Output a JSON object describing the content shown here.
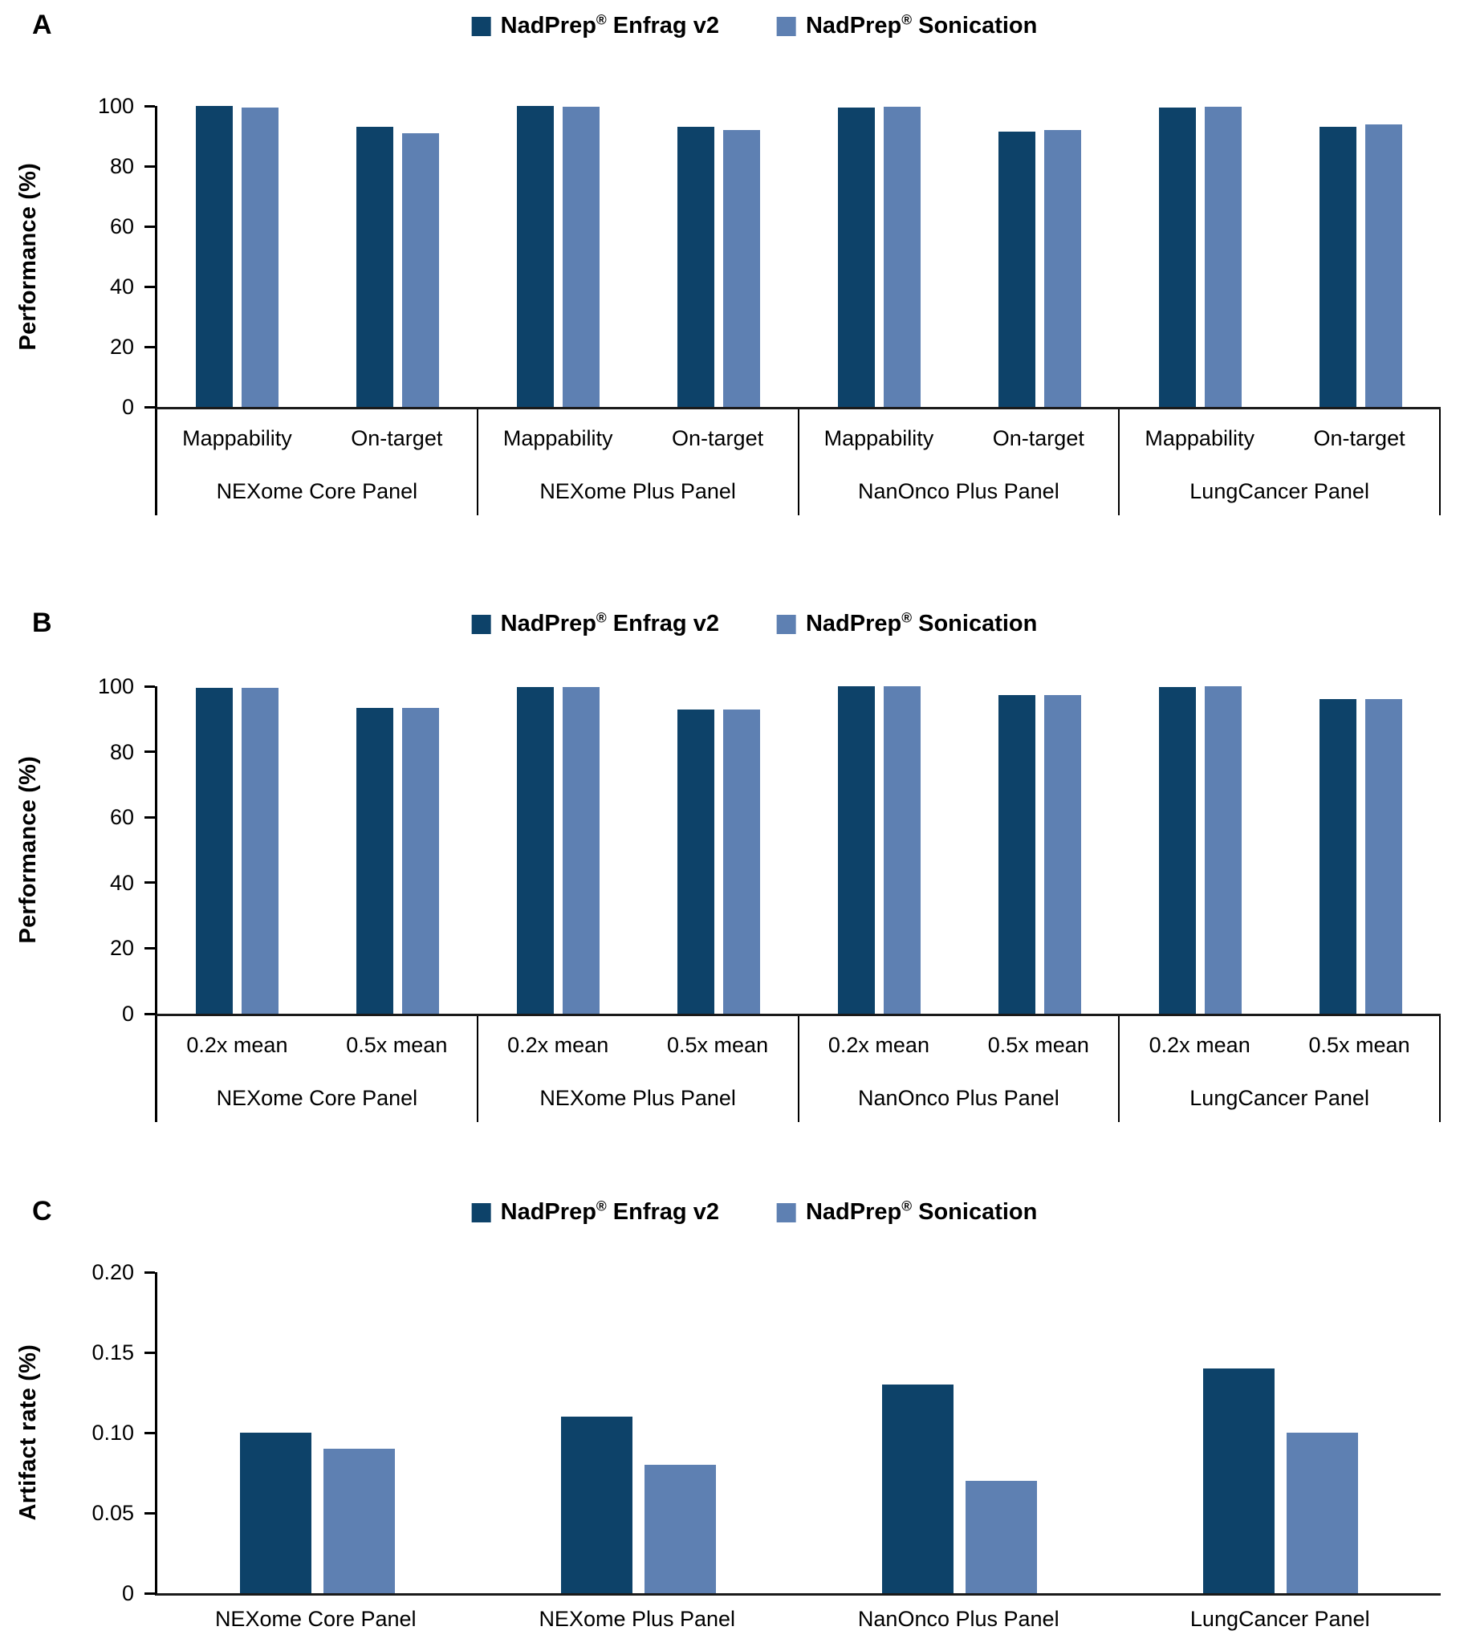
{
  "figure": {
    "panel_letters": [
      "A",
      "B",
      "C"
    ]
  },
  "legend": {
    "brand": "NadPrep",
    "reg_mark": "®",
    "enfrag_suffix": " Enfrag v2",
    "sonication_suffix": " Sonication",
    "enfrag_color": "#0d4269",
    "sonication_color": "#5e80b2"
  },
  "chart_data": [
    {
      "id": "A",
      "type": "bar",
      "ylabel": "Performance (%)",
      "ylim": [
        0,
        100
      ],
      "yticks": [
        "100",
        "80",
        "60",
        "40",
        "20",
        "0"
      ],
      "grid": false,
      "legend_position": "top-center",
      "series_names": [
        "NadPrep® Enfrag v2",
        "NadPrep® Sonication"
      ],
      "panels": [
        {
          "label": "NEXome Core Panel",
          "categories": [
            "Mappability",
            "On-target"
          ],
          "series": [
            {
              "name": "NadPrep® Enfrag v2",
              "values": [
                100,
                93
              ]
            },
            {
              "name": "NadPrep® Sonication",
              "values": [
                99.5,
                91
              ]
            }
          ]
        },
        {
          "label": "NEXome Plus Panel",
          "categories": [
            "Mappability",
            "On-target"
          ],
          "series": [
            {
              "name": "NadPrep® Enfrag v2",
              "values": [
                100,
                93
              ]
            },
            {
              "name": "NadPrep® Sonication",
              "values": [
                99.7,
                92
              ]
            }
          ]
        },
        {
          "label": "NanOnco Plus Panel",
          "categories": [
            "Mappability",
            "On-target"
          ],
          "series": [
            {
              "name": "NadPrep® Enfrag v2",
              "values": [
                99.5,
                91.5
              ]
            },
            {
              "name": "NadPrep® Sonication",
              "values": [
                99.8,
                92
              ]
            }
          ]
        },
        {
          "label": "LungCancer Panel",
          "categories": [
            "Mappability",
            "On-target"
          ],
          "series": [
            {
              "name": "NadPrep® Enfrag v2",
              "values": [
                99.5,
                93
              ]
            },
            {
              "name": "NadPrep® Sonication",
              "values": [
                99.8,
                94
              ]
            }
          ]
        }
      ]
    },
    {
      "id": "B",
      "type": "bar",
      "ylabel": "Performance (%)",
      "ylim": [
        0,
        100
      ],
      "yticks": [
        "100",
        "80",
        "60",
        "40",
        "20",
        "0"
      ],
      "grid": false,
      "legend_position": "top-center",
      "series_names": [
        "NadPrep® Enfrag v2",
        "NadPrep® Sonication"
      ],
      "panels": [
        {
          "label": "NEXome Core Panel",
          "categories": [
            "0.2x mean",
            "0.5x mean"
          ],
          "series": [
            {
              "name": "NadPrep® Enfrag v2",
              "values": [
                99.5,
                93.5
              ]
            },
            {
              "name": "NadPrep® Sonication",
              "values": [
                99.5,
                93.5
              ]
            }
          ]
        },
        {
          "label": "NEXome Plus Panel",
          "categories": [
            "0.2x mean",
            "0.5x mean"
          ],
          "series": [
            {
              "name": "NadPrep® Enfrag v2",
              "values": [
                99.7,
                93
              ]
            },
            {
              "name": "NadPrep® Sonication",
              "values": [
                99.7,
                93
              ]
            }
          ]
        },
        {
          "label": "NanOnco Plus Panel",
          "categories": [
            "0.2x mean",
            "0.5x mean"
          ],
          "series": [
            {
              "name": "NadPrep® Enfrag v2",
              "values": [
                100,
                97.3
              ]
            },
            {
              "name": "NadPrep® Sonication",
              "values": [
                100,
                97.3
              ]
            }
          ]
        },
        {
          "label": "LungCancer Panel",
          "categories": [
            "0.2x mean",
            "0.5x mean"
          ],
          "series": [
            {
              "name": "NadPrep® Enfrag v2",
              "values": [
                99.8,
                96
              ]
            },
            {
              "name": "NadPrep® Sonication",
              "values": [
                100,
                96
              ]
            }
          ]
        }
      ]
    },
    {
      "id": "C",
      "type": "bar",
      "ylabel": "Artifact rate (%)",
      "ylim": [
        0,
        0.2
      ],
      "yticks": [
        "0.20",
        "0.15",
        "0.10",
        "0.05",
        "0"
      ],
      "grid": false,
      "legend_position": "top-center",
      "series_names": [
        "NadPrep® Enfrag v2",
        "NadPrep® Sonication"
      ],
      "panels": [
        {
          "label": "NEXome Core Panel",
          "series": [
            {
              "name": "NadPrep® Enfrag v2",
              "values": [
                0.1
              ]
            },
            {
              "name": "NadPrep® Sonication",
              "values": [
                0.09
              ]
            }
          ]
        },
        {
          "label": "NEXome Plus Panel",
          "series": [
            {
              "name": "NadPrep® Enfrag v2",
              "values": [
                0.11
              ]
            },
            {
              "name": "NadPrep® Sonication",
              "values": [
                0.08
              ]
            }
          ]
        },
        {
          "label": "NanOnco Plus Panel",
          "series": [
            {
              "name": "NadPrep® Enfrag v2",
              "values": [
                0.13
              ]
            },
            {
              "name": "NadPrep® Sonication",
              "values": [
                0.07
              ]
            }
          ]
        },
        {
          "label": "LungCancer Panel",
          "series": [
            {
              "name": "NadPrep® Enfrag v2",
              "values": [
                0.14
              ]
            },
            {
              "name": "NadPrep® Sonication",
              "values": [
                0.1
              ]
            }
          ]
        }
      ]
    }
  ]
}
